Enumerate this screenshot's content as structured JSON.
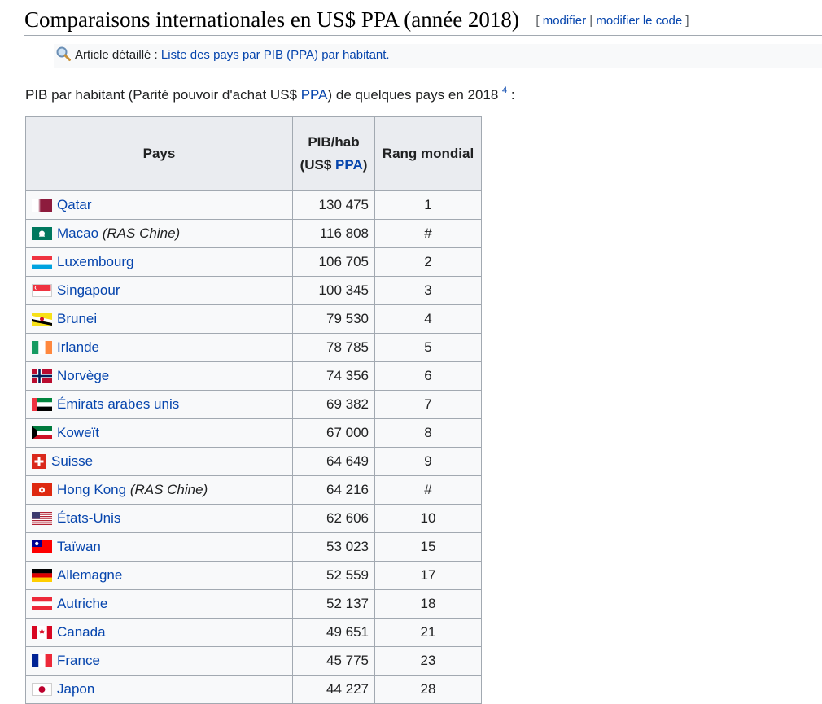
{
  "section": {
    "title": "Comparaisons internationales en US$ PPA (année 2018)",
    "edit_open": "[",
    "edit_link": "modifier",
    "edit_sep": "|",
    "edit_code_link": "modifier le code",
    "edit_close": "]"
  },
  "hatnote": {
    "prefix": "Article détaillé : ",
    "link": "Liste des pays par PIB (PPA) par habitant."
  },
  "intro": {
    "text_before": "PIB par habitant (Parité pouvoir d'achat US$ ",
    "link": "PPA",
    "text_after": ") de quelques pays en 2018 ",
    "ref": "4",
    "colon": " :"
  },
  "table": {
    "headers": {
      "country": "Pays",
      "gdp_line1": "PIB/hab",
      "gdp_line2_before": "(US$ ",
      "gdp_line2_link": "PPA",
      "gdp_line2_after": ")",
      "rank": "Rang mondial"
    },
    "rows": [
      {
        "country": "Qatar",
        "note": "",
        "gdp": "130 475",
        "rank": "1"
      },
      {
        "country": "Macao",
        "note": "(RAS Chine)",
        "gdp": "116 808",
        "rank": "#"
      },
      {
        "country": "Luxembourg",
        "note": "",
        "gdp": "106 705",
        "rank": "2"
      },
      {
        "country": "Singapour",
        "note": "",
        "gdp": "100 345",
        "rank": "3"
      },
      {
        "country": "Brunei",
        "note": "",
        "gdp": "79 530",
        "rank": "4"
      },
      {
        "country": "Irlande",
        "note": "",
        "gdp": "78 785",
        "rank": "5"
      },
      {
        "country": "Norvège",
        "note": "",
        "gdp": "74 356",
        "rank": "6"
      },
      {
        "country": "Émirats arabes unis",
        "note": "",
        "gdp": "69 382",
        "rank": "7"
      },
      {
        "country": "Koweït",
        "note": "",
        "gdp": "67 000",
        "rank": "8"
      },
      {
        "country": "Suisse",
        "note": "",
        "gdp": "64 649",
        "rank": "9"
      },
      {
        "country": "Hong Kong",
        "note": "(RAS Chine)",
        "gdp": "64 216",
        "rank": "#"
      },
      {
        "country": "États-Unis",
        "note": "",
        "gdp": "62 606",
        "rank": "10"
      },
      {
        "country": "Taïwan",
        "note": "",
        "gdp": "53 023",
        "rank": "15"
      },
      {
        "country": "Allemagne",
        "note": "",
        "gdp": "52 559",
        "rank": "17"
      },
      {
        "country": "Autriche",
        "note": "",
        "gdp": "52 137",
        "rank": "18"
      },
      {
        "country": "Canada",
        "note": "",
        "gdp": "49 651",
        "rank": "21"
      },
      {
        "country": "France",
        "note": "",
        "gdp": "45 775",
        "rank": "23"
      },
      {
        "country": "Japon",
        "note": "",
        "gdp": "44 227",
        "rank": "28"
      }
    ]
  },
  "colors": {
    "link": "#0645ad",
    "header_bg": "#eaecf0",
    "table_bg": "#f8f9fa",
    "border": "#a2a9b1"
  }
}
